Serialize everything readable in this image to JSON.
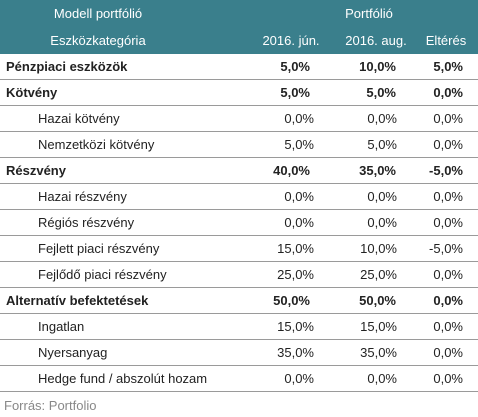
{
  "header": {
    "left_line1": "Modell portfólió",
    "left_line2": "Eszközkategória",
    "group_label": "Portfólió",
    "col1": "2016. jún.",
    "col2": "2016. aug.",
    "col3": "Eltérés"
  },
  "rows": [
    {
      "name": "Pénzpiaci eszközök",
      "v1": "5,0%",
      "v2": "10,0%",
      "v3": "5,0%",
      "level": "main"
    },
    {
      "name": "Kötvény",
      "v1": "5,0%",
      "v2": "5,0%",
      "v3": "0,0%",
      "level": "main"
    },
    {
      "name": "Hazai kötvény",
      "v1": "0,0%",
      "v2": "0,0%",
      "v3": "0,0%",
      "level": "sub"
    },
    {
      "name": "Nemzetközi kötvény",
      "v1": "5,0%",
      "v2": "5,0%",
      "v3": "0,0%",
      "level": "sub"
    },
    {
      "name": "Részvény",
      "v1": "40,0%",
      "v2": "35,0%",
      "v3": "-5,0%",
      "level": "main"
    },
    {
      "name": "Hazai részvény",
      "v1": "0,0%",
      "v2": "0,0%",
      "v3": "0,0%",
      "level": "sub"
    },
    {
      "name": "Régiós részvény",
      "v1": "0,0%",
      "v2": "0,0%",
      "v3": "0,0%",
      "level": "sub"
    },
    {
      "name": "Fejlett piaci részvény",
      "v1": "15,0%",
      "v2": "10,0%",
      "v3": "-5,0%",
      "level": "sub"
    },
    {
      "name": "Fejlődő piaci részvény",
      "v1": "25,0%",
      "v2": "25,0%",
      "v3": "0,0%",
      "level": "sub"
    },
    {
      "name": "Alternatív befektetések",
      "v1": "50,0%",
      "v2": "50,0%",
      "v3": "0,0%",
      "level": "main"
    },
    {
      "name": "Ingatlan",
      "v1": "15,0%",
      "v2": "15,0%",
      "v3": "0,0%",
      "level": "sub"
    },
    {
      "name": "Nyersanyag",
      "v1": "35,0%",
      "v2": "35,0%",
      "v3": "0,0%",
      "level": "sub"
    },
    {
      "name": "Hedge fund / abszolút hozam",
      "v1": "0,0%",
      "v2": "0,0%",
      "v3": "0,0%",
      "level": "sub"
    }
  ],
  "source": "Forrás: Portfolio",
  "colors": {
    "header_bg": "#3a7f8c",
    "header_text": "#ffffff",
    "source_text": "#888888"
  }
}
